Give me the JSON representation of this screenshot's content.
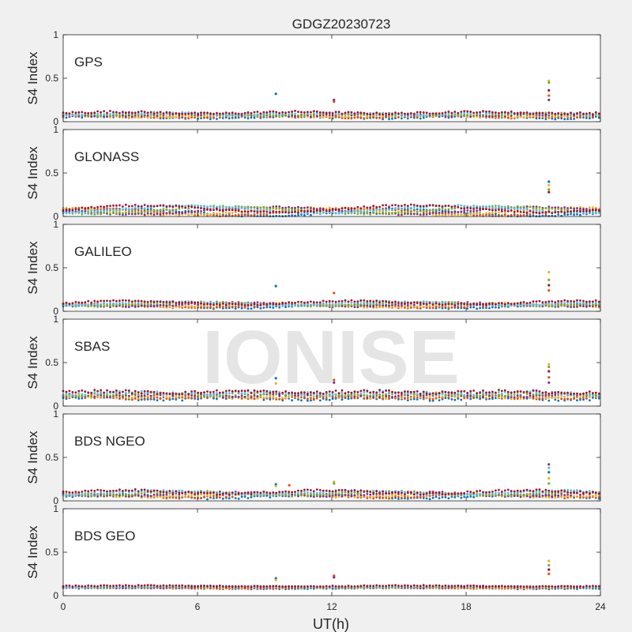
{
  "figure": {
    "title": "GDGZ20230723",
    "xlabel": "UT(h)",
    "watermark": "IONISE",
    "background": "#f0f0f0",
    "axes_background": "#ffffff",
    "palette": [
      "#0072bd",
      "#d95319",
      "#edb120",
      "#7e2f8e",
      "#77ac30",
      "#4dbeee",
      "#a2142f"
    ]
  },
  "chart_data": [
    {
      "type": "scatter",
      "panel_label": "GPS",
      "ylabel": "S4 Index",
      "xlim": [
        0,
        24
      ],
      "ylim": [
        0,
        1
      ],
      "xticks": [
        0,
        6,
        12,
        18,
        24
      ],
      "yticks": [
        0,
        0.5,
        1
      ],
      "baseline": 0.08,
      "noise": 0.025,
      "drift": {
        "amplitude": 0.01,
        "period_hours": 8
      },
      "outliers": [
        {
          "x": 9.5,
          "values": [
            0.32
          ]
        },
        {
          "x": 12.1,
          "values": [
            0.23,
            0.25
          ]
        },
        {
          "x": 21.7,
          "values": [
            0.47,
            0.45,
            0.36,
            0.3,
            0.25
          ]
        }
      ]
    },
    {
      "type": "scatter",
      "panel_label": "GLONASS",
      "ylabel": "S4 Index",
      "xlim": [
        0,
        24
      ],
      "ylim": [
        0,
        1
      ],
      "xticks": [
        0,
        6,
        12,
        18,
        24
      ],
      "yticks": [
        0,
        0.5,
        1
      ],
      "baseline": 0.07,
      "noise": 0.02,
      "drift": {
        "amplitude": 0.04,
        "period_hours": 12
      },
      "outliers": [
        {
          "x": 21.7,
          "values": [
            0.4,
            0.36,
            0.31,
            0.28
          ]
        }
      ]
    },
    {
      "type": "scatter",
      "panel_label": "GALILEO",
      "ylabel": "S4 Index",
      "xlim": [
        0,
        24
      ],
      "ylim": [
        0,
        1
      ],
      "xticks": [
        0,
        6,
        12,
        18,
        24
      ],
      "yticks": [
        0,
        0.5,
        1
      ],
      "baseline": 0.08,
      "noise": 0.02,
      "drift": {
        "amplitude": 0.02,
        "period_hours": 10
      },
      "outliers": [
        {
          "x": 9.5,
          "values": [
            0.29
          ]
        },
        {
          "x": 12.1,
          "values": [
            0.21
          ]
        },
        {
          "x": 21.7,
          "values": [
            0.45,
            0.36,
            0.3,
            0.24
          ]
        }
      ]
    },
    {
      "type": "scatter",
      "panel_label": "SBAS",
      "ylabel": "S4 Index",
      "xlim": [
        0,
        24
      ],
      "ylim": [
        0,
        1
      ],
      "xticks": [
        0,
        6,
        12,
        18,
        24
      ],
      "yticks": [
        0,
        0.5,
        1
      ],
      "baseline": 0.13,
      "noise": 0.035,
      "drift": {
        "amplitude": 0.01,
        "period_hours": 6
      },
      "outliers": [
        {
          "x": 9.5,
          "values": [
            0.32,
            0.26
          ]
        },
        {
          "x": 12.1,
          "values": [
            0.3,
            0.27
          ]
        },
        {
          "x": 21.7,
          "values": [
            0.48,
            0.45,
            0.4,
            0.33,
            0.27
          ]
        }
      ]
    },
    {
      "type": "scatter",
      "panel_label": "BDS NGEO",
      "ylabel": "S4 Index",
      "xlim": [
        0,
        24
      ],
      "ylim": [
        0,
        1
      ],
      "xticks": [
        0,
        6,
        12,
        18,
        24
      ],
      "yticks": [
        0,
        0.5,
        1
      ],
      "baseline": 0.08,
      "noise": 0.025,
      "drift": {
        "amplitude": 0.02,
        "period_hours": 9
      },
      "outliers": [
        {
          "x": 9.5,
          "values": [
            0.19,
            0.17
          ]
        },
        {
          "x": 10.1,
          "values": [
            0.18
          ]
        },
        {
          "x": 12.1,
          "values": [
            0.22,
            0.2
          ]
        },
        {
          "x": 21.7,
          "values": [
            0.42,
            0.38,
            0.33,
            0.26,
            0.2
          ]
        }
      ]
    },
    {
      "type": "scatter",
      "panel_label": "BDS GEO",
      "ylabel": "S4 Index",
      "xlim": [
        0,
        24
      ],
      "ylim": [
        0,
        1
      ],
      "xticks": [
        0,
        6,
        12,
        18,
        24
      ],
      "yticks": [
        0,
        0.5,
        1
      ],
      "baseline": 0.1,
      "noise": 0.012,
      "drift": {
        "amplitude": 0.005,
        "period_hours": 12
      },
      "outliers": [
        {
          "x": 9.5,
          "values": [
            0.2,
            0.18
          ]
        },
        {
          "x": 12.1,
          "values": [
            0.23,
            0.21
          ]
        },
        {
          "x": 21.7,
          "values": [
            0.4,
            0.35,
            0.3,
            0.25
          ]
        }
      ]
    }
  ]
}
